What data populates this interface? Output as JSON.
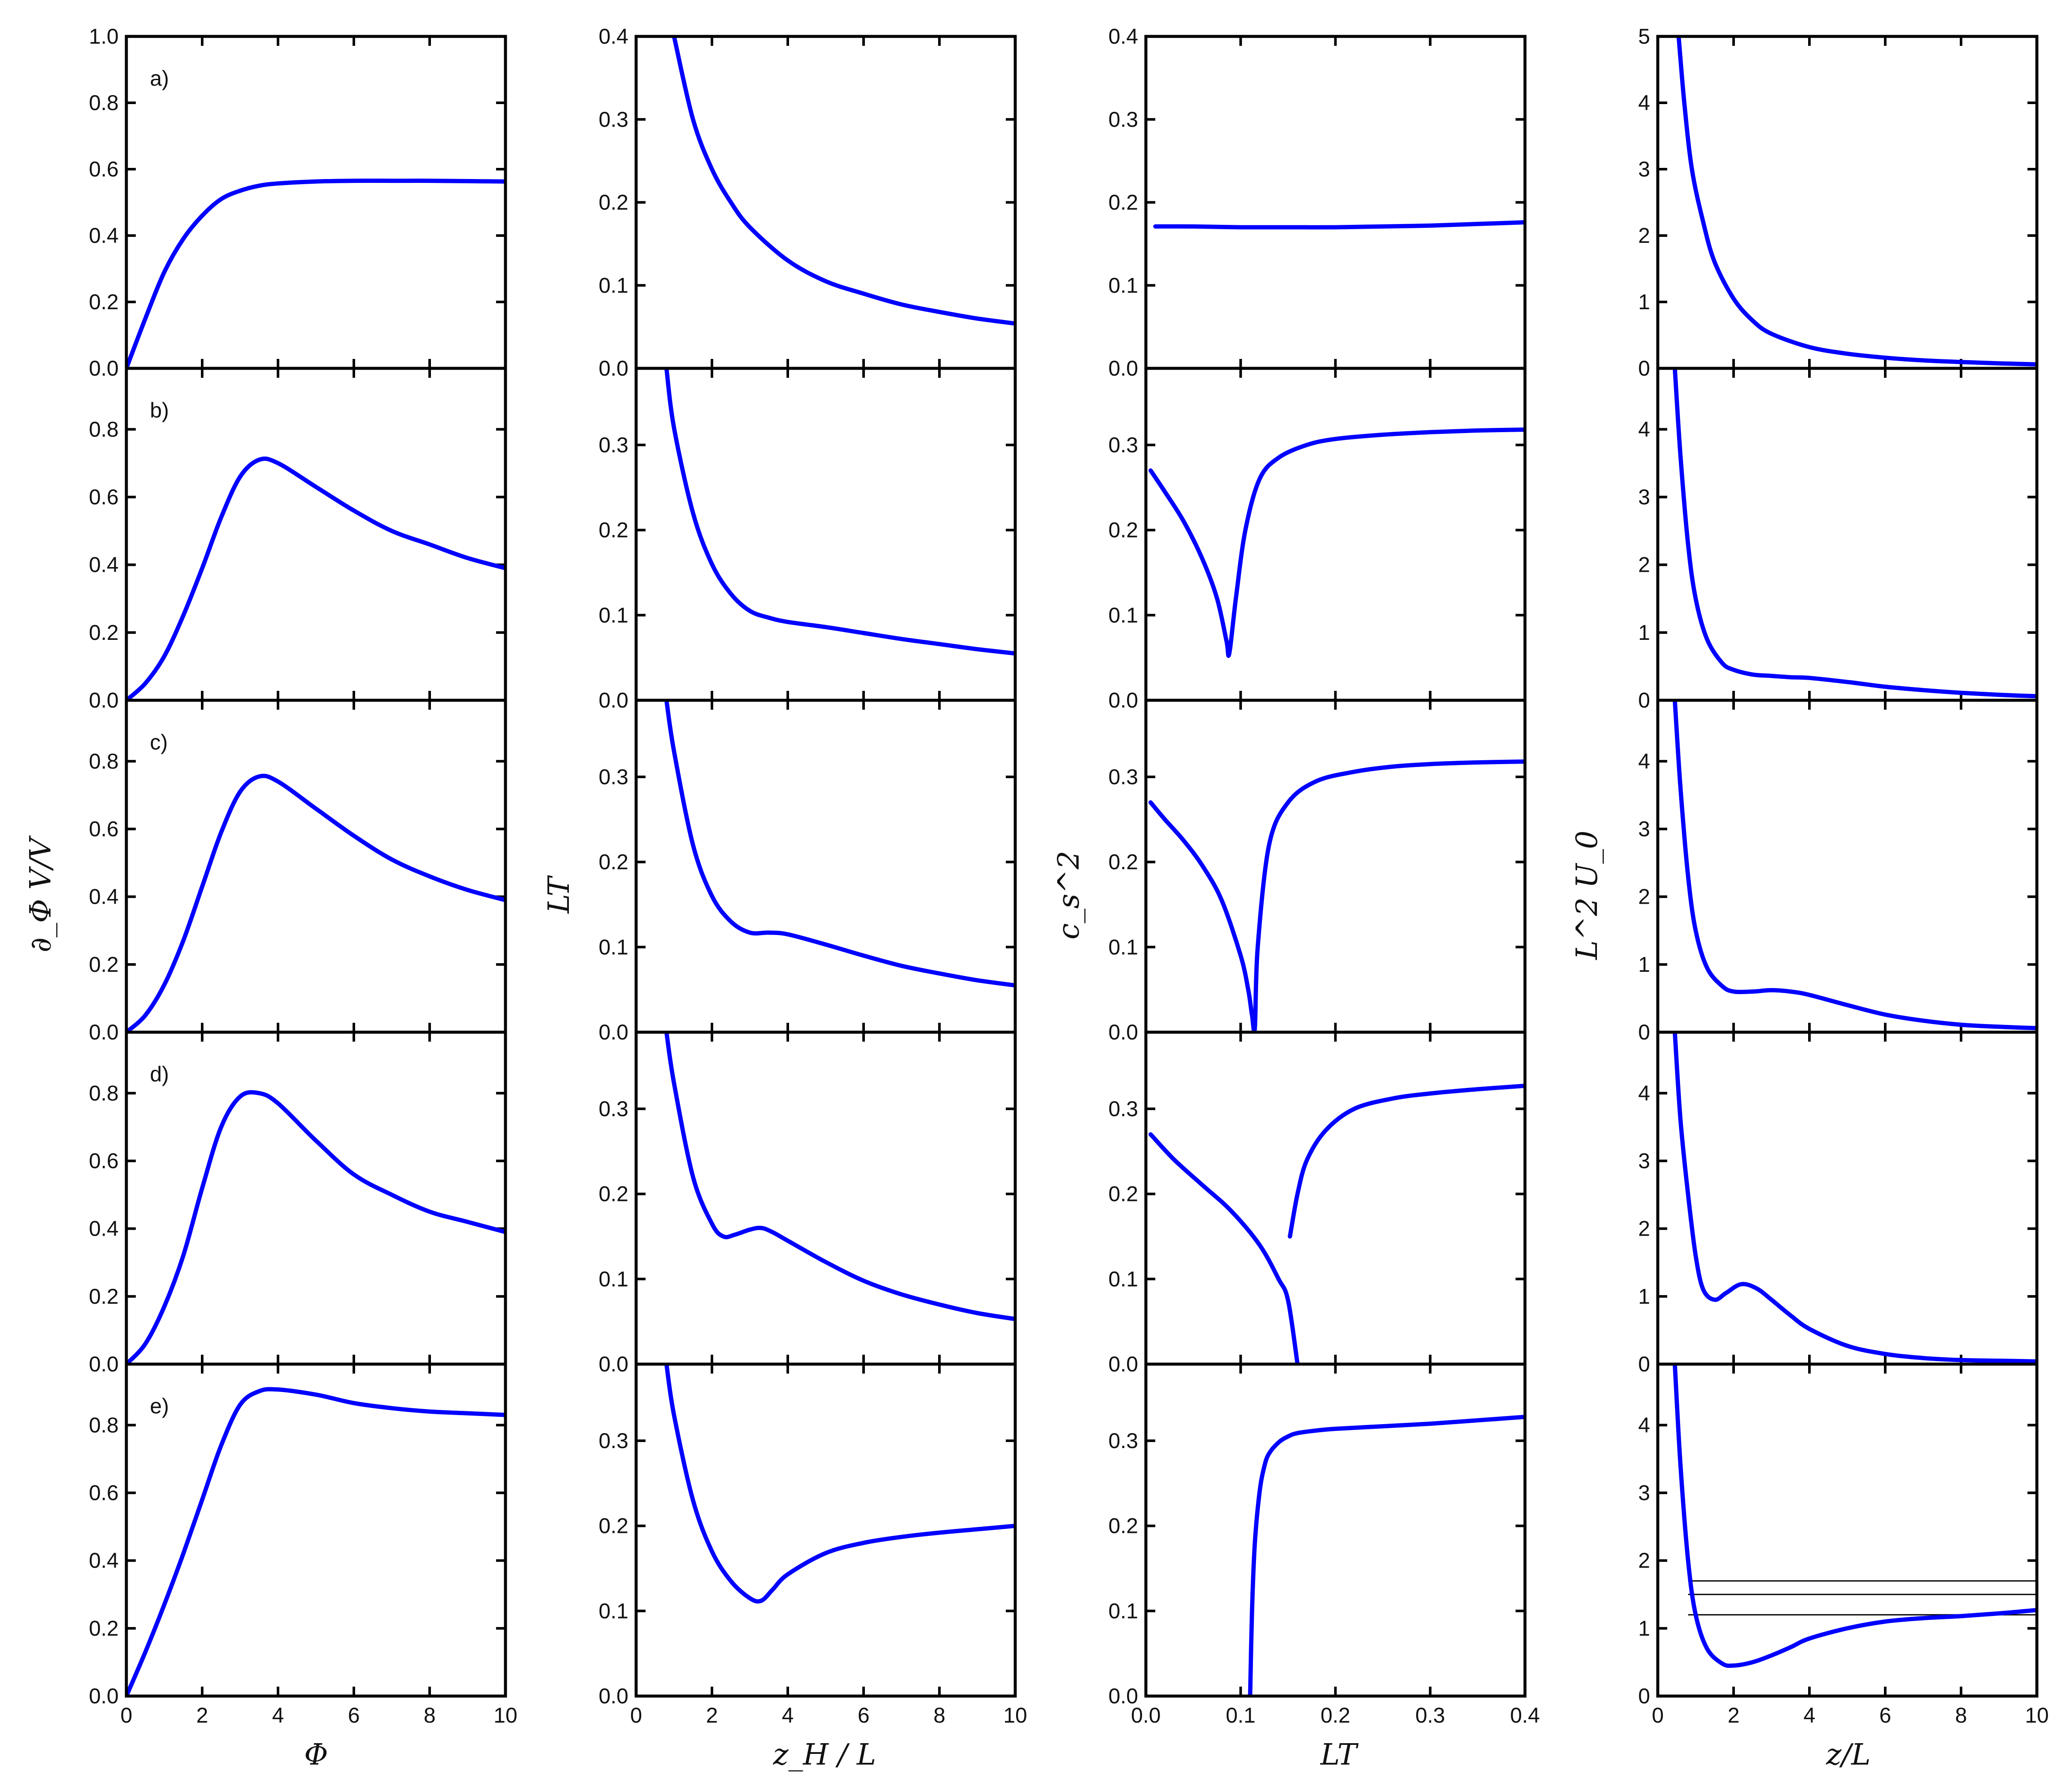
{
  "colors": {
    "curve": "#0000ff",
    "reference_line": "#000000",
    "frame": "#000000"
  },
  "column_labels": {
    "x": [
      "Φ",
      "z_H / L",
      "LT",
      "z/L"
    ],
    "y": [
      "∂_Φ V/V",
      "LT",
      "c_s^2",
      "L^2 U_0"
    ]
  },
  "row_tags": [
    "a)",
    "b)",
    "c)",
    "d)",
    "e)"
  ],
  "chart_data": [
    {
      "type": "line",
      "column": 0,
      "xlabel": "Φ",
      "ylabel": "∂_Φ V/V",
      "xlim": [
        0,
        10
      ],
      "xticks": [
        0,
        2,
        4,
        6,
        8,
        10
      ],
      "rows": [
        {
          "tag": "a)",
          "ylim": [
            0,
            1.0
          ],
          "yticks": [
            "0.0",
            "0.2",
            "0.4",
            "0.6",
            "0.8",
            "1.0"
          ],
          "x": [
            0,
            0.5,
            1,
            1.5,
            2,
            2.5,
            3,
            3.5,
            4,
            5,
            6,
            7,
            8,
            9,
            10
          ],
          "y": [
            0,
            0.15,
            0.29,
            0.39,
            0.46,
            0.51,
            0.535,
            0.55,
            0.557,
            0.563,
            0.565,
            0.565,
            0.565,
            0.564,
            0.563
          ]
        },
        {
          "tag": "b)",
          "ylim": [
            0,
            0.98
          ],
          "yticks": [
            "0.0",
            "0.2",
            "0.4",
            "0.6",
            "0.8"
          ],
          "x": [
            0,
            0.5,
            1,
            1.5,
            2,
            2.5,
            3,
            3.5,
            4,
            5,
            6,
            7,
            8,
            9,
            10
          ],
          "y": [
            0,
            0.05,
            0.13,
            0.25,
            0.39,
            0.54,
            0.66,
            0.71,
            0.7,
            0.63,
            0.56,
            0.5,
            0.46,
            0.42,
            0.39
          ]
        },
        {
          "tag": "c)",
          "ylim": [
            0,
            0.98
          ],
          "yticks": [
            "0.0",
            "0.2",
            "0.4",
            "0.6",
            "0.8"
          ],
          "x": [
            0,
            0.5,
            1,
            1.5,
            2,
            2.5,
            3,
            3.5,
            4,
            5,
            6,
            7,
            8,
            9,
            10
          ],
          "y": [
            0,
            0.05,
            0.14,
            0.27,
            0.43,
            0.59,
            0.71,
            0.755,
            0.74,
            0.66,
            0.58,
            0.51,
            0.46,
            0.42,
            0.39
          ]
        },
        {
          "tag": "d)",
          "ylim": [
            0,
            0.98
          ],
          "yticks": [
            "0.0",
            "0.2",
            "0.4",
            "0.6",
            "0.8"
          ],
          "x": [
            0,
            0.5,
            1,
            1.5,
            2,
            2.5,
            3,
            3.5,
            4,
            5,
            6,
            7,
            8,
            9,
            10
          ],
          "y": [
            0,
            0.06,
            0.17,
            0.32,
            0.52,
            0.7,
            0.79,
            0.8,
            0.77,
            0.66,
            0.56,
            0.5,
            0.45,
            0.42,
            0.39
          ]
        },
        {
          "tag": "e)",
          "ylim": [
            0,
            0.98
          ],
          "yticks": [
            "0.0",
            "0.2",
            "0.4",
            "0.6",
            "0.8"
          ],
          "x": [
            0,
            0.5,
            1,
            1.5,
            2,
            2.5,
            3,
            3.5,
            4,
            5,
            6,
            7,
            8,
            9,
            10
          ],
          "y": [
            0,
            0.13,
            0.27,
            0.42,
            0.58,
            0.74,
            0.86,
            0.9,
            0.905,
            0.89,
            0.865,
            0.85,
            0.84,
            0.835,
            0.83
          ]
        }
      ]
    },
    {
      "type": "line",
      "column": 1,
      "xlabel": "z_H / L",
      "ylabel": "LT",
      "xlim": [
        0,
        10
      ],
      "xticks": [
        0,
        2,
        4,
        6,
        8,
        10
      ],
      "rows": [
        {
          "ylim": [
            0,
            0.4
          ],
          "yticks": [
            "0.0",
            "0.1",
            "0.2",
            "0.3",
            "0.4"
          ],
          "x": [
            1,
            1.5,
            2,
            2.5,
            3,
            4,
            5,
            6,
            7,
            8,
            9,
            10
          ],
          "y": [
            0.4,
            0.3,
            0.24,
            0.2,
            0.17,
            0.13,
            0.105,
            0.09,
            0.077,
            0.068,
            0.06,
            0.054
          ]
        },
        {
          "ylim": [
            0,
            0.39
          ],
          "yticks": [
            "0.0",
            "0.1",
            "0.2",
            "0.3"
          ],
          "x": [
            0.8,
            1,
            1.5,
            2,
            2.5,
            3,
            3.5,
            4,
            5,
            6,
            7,
            8,
            9,
            10
          ],
          "y": [
            0.39,
            0.32,
            0.22,
            0.16,
            0.125,
            0.105,
            0.097,
            0.092,
            0.086,
            0.079,
            0.072,
            0.066,
            0.06,
            0.055
          ]
        },
        {
          "ylim": [
            0,
            0.39
          ],
          "yticks": [
            "0.0",
            "0.1",
            "0.2",
            "0.3"
          ],
          "x": [
            0.8,
            1,
            1.5,
            2,
            2.5,
            3,
            3.5,
            4,
            5,
            6,
            7,
            8,
            9,
            10
          ],
          "y": [
            0.39,
            0.33,
            0.22,
            0.16,
            0.13,
            0.117,
            0.117,
            0.115,
            0.103,
            0.09,
            0.078,
            0.069,
            0.061,
            0.055
          ]
        },
        {
          "ylim": [
            0,
            0.39
          ],
          "yticks": [
            "0.0",
            "0.1",
            "0.2",
            "0.3"
          ],
          "x": [
            0.8,
            1,
            1.5,
            2,
            2.3,
            2.6,
            3,
            3.3,
            3.6,
            4,
            5,
            6,
            7,
            8,
            9,
            10
          ],
          "y": [
            0.39,
            0.33,
            0.22,
            0.165,
            0.15,
            0.152,
            0.158,
            0.16,
            0.155,
            0.145,
            0.12,
            0.098,
            0.082,
            0.07,
            0.06,
            0.053
          ]
        },
        {
          "ylim": [
            0,
            0.39
          ],
          "yticks": [
            "0.0",
            "0.1",
            "0.2",
            "0.3"
          ],
          "x": [
            0.8,
            1,
            1.5,
            2,
            2.5,
            3,
            3.3,
            3.6,
            4,
            5,
            6,
            7,
            8,
            9,
            10
          ],
          "y": [
            0.39,
            0.33,
            0.23,
            0.17,
            0.135,
            0.115,
            0.112,
            0.125,
            0.143,
            0.168,
            0.18,
            0.187,
            0.192,
            0.196,
            0.2
          ]
        }
      ]
    },
    {
      "type": "line",
      "column": 2,
      "xlabel": "LT",
      "ylabel": "c_s^2",
      "xlim": [
        0,
        0.4
      ],
      "xticks": [
        "0.0",
        "0.1",
        "0.2",
        "0.3",
        "0.4"
      ],
      "rows": [
        {
          "ylim": [
            0,
            0.4
          ],
          "yticks": [
            "0.0",
            "0.1",
            "0.2",
            "0.3",
            "0.4"
          ],
          "x": [
            0.01,
            0.05,
            0.1,
            0.15,
            0.2,
            0.25,
            0.3,
            0.35,
            0.4
          ],
          "y": [
            0.171,
            0.171,
            0.17,
            0.17,
            0.17,
            0.171,
            0.172,
            0.174,
            0.176
          ]
        },
        {
          "ylim": [
            0,
            0.39
          ],
          "yticks": [
            "0.0",
            "0.1",
            "0.2",
            "0.3"
          ],
          "x": [
            0.005,
            0.02,
            0.04,
            0.06,
            0.075,
            0.085,
            0.088,
            0.095,
            0.105,
            0.12,
            0.14,
            0.17,
            0.2,
            0.25,
            0.3,
            0.35,
            0.4
          ],
          "y": [
            0.27,
            0.245,
            0.21,
            0.165,
            0.12,
            0.07,
            0.055,
            0.12,
            0.2,
            0.26,
            0.285,
            0.3,
            0.307,
            0.312,
            0.315,
            0.317,
            0.318
          ]
        },
        {
          "ylim": [
            0,
            0.39
          ],
          "yticks": [
            "0.0",
            "0.1",
            "0.2",
            "0.3"
          ],
          "x": [
            0.005,
            0.02,
            0.04,
            0.06,
            0.08,
            0.1,
            0.108,
            0.112,
            0.115,
            0.118,
            0.13,
            0.15,
            0.18,
            0.22,
            0.26,
            0.3,
            0.35,
            0.4
          ],
          "y": [
            0.27,
            0.25,
            0.225,
            0.195,
            0.155,
            0.09,
            0.05,
            0.02,
            0.005,
            0.1,
            0.22,
            0.27,
            0.295,
            0.306,
            0.312,
            0.315,
            0.317,
            0.318
          ]
        },
        {
          "ylim": [
            0,
            0.39
          ],
          "yticks": [
            "0.0",
            "0.1",
            "0.2",
            "0.3"
          ],
          "x": [
            0.005,
            0.03,
            0.06,
            0.09,
            0.12,
            0.14,
            0.15,
            0.16
          ],
          "y": [
            0.27,
            0.24,
            0.21,
            0.18,
            0.14,
            0.1,
            0.075,
            0.0
          ],
          "x2": [
            0.152,
            0.16,
            0.17,
            0.19,
            0.22,
            0.26,
            0.3,
            0.35,
            0.4
          ],
          "y2": [
            0.15,
            0.2,
            0.24,
            0.275,
            0.3,
            0.312,
            0.318,
            0.323,
            0.327
          ]
        },
        {
          "ylim": [
            0,
            0.39
          ],
          "yticks": [
            "0.0",
            "0.1",
            "0.2",
            "0.3"
          ],
          "x": [
            0.11,
            0.112,
            0.115,
            0.12,
            0.125,
            0.13,
            0.14,
            0.15,
            0.16,
            0.18,
            0.2,
            0.25,
            0.3,
            0.35,
            0.4
          ],
          "y": [
            0.0,
            0.1,
            0.18,
            0.24,
            0.27,
            0.285,
            0.298,
            0.305,
            0.309,
            0.312,
            0.314,
            0.317,
            0.32,
            0.324,
            0.328
          ]
        }
      ]
    },
    {
      "type": "line",
      "column": 3,
      "xlabel": "z/L",
      "ylabel": "L^2 U_0",
      "xlim": [
        0,
        10
      ],
      "xticks": [
        0,
        2,
        4,
        6,
        8,
        10
      ],
      "rows": [
        {
          "ylim": [
            0,
            5
          ],
          "yticks": [
            "0",
            "1",
            "2",
            "3",
            "4",
            "5"
          ],
          "x": [
            0.55,
            0.7,
            0.9,
            1.2,
            1.5,
            2,
            2.5,
            3,
            4,
            5,
            6,
            7,
            8,
            9,
            10
          ],
          "y": [
            5.0,
            4.0,
            3.0,
            2.2,
            1.6,
            1.05,
            0.72,
            0.52,
            0.32,
            0.22,
            0.16,
            0.12,
            0.095,
            0.075,
            0.06
          ]
        },
        {
          "ylim": [
            0,
            4.9
          ],
          "yticks": [
            "0",
            "1",
            "2",
            "3",
            "4"
          ],
          "x": [
            0.45,
            0.6,
            0.8,
            1,
            1.3,
            1.7,
            2,
            2.5,
            3,
            3.5,
            4,
            5,
            6,
            7,
            8,
            9,
            10
          ],
          "y": [
            4.9,
            3.6,
            2.3,
            1.5,
            0.9,
            0.55,
            0.45,
            0.38,
            0.36,
            0.34,
            0.33,
            0.27,
            0.2,
            0.15,
            0.11,
            0.08,
            0.06
          ]
        },
        {
          "ylim": [
            0,
            4.9
          ],
          "yticks": [
            "0",
            "1",
            "2",
            "3",
            "4"
          ],
          "x": [
            0.45,
            0.6,
            0.8,
            1,
            1.3,
            1.7,
            2,
            2.5,
            3,
            3.5,
            4,
            5,
            6,
            7,
            8,
            9,
            10
          ],
          "y": [
            4.9,
            3.6,
            2.3,
            1.5,
            0.95,
            0.68,
            0.6,
            0.6,
            0.62,
            0.6,
            0.55,
            0.4,
            0.26,
            0.17,
            0.11,
            0.08,
            0.06
          ]
        },
        {
          "ylim": [
            0,
            4.9
          ],
          "yticks": [
            "0",
            "1",
            "2",
            "3",
            "4"
          ],
          "x": [
            0.45,
            0.6,
            0.8,
            1,
            1.2,
            1.5,
            1.8,
            2.2,
            2.6,
            3,
            3.5,
            4,
            5,
            6,
            7,
            8,
            9,
            10
          ],
          "y": [
            4.9,
            3.6,
            2.5,
            1.6,
            1.1,
            0.95,
            1.05,
            1.18,
            1.12,
            0.95,
            0.72,
            0.52,
            0.27,
            0.15,
            0.09,
            0.06,
            0.05,
            0.04
          ]
        },
        {
          "ylim": [
            0,
            4.9
          ],
          "yticks": [
            "0",
            "1",
            "2",
            "3",
            "4"
          ],
          "x": [
            0.45,
            0.6,
            0.8,
            1,
            1.3,
            1.7,
            2,
            2.5,
            3,
            3.5,
            4,
            5,
            6,
            7,
            8,
            9,
            10
          ],
          "y": [
            4.9,
            3.4,
            2.0,
            1.2,
            0.7,
            0.48,
            0.45,
            0.5,
            0.6,
            0.72,
            0.85,
            1.0,
            1.1,
            1.15,
            1.18,
            1.22,
            1.27
          ],
          "hlines": [
            1.2,
            1.5,
            1.7
          ],
          "hline_xrange": [
            0.8,
            10
          ]
        }
      ]
    }
  ]
}
